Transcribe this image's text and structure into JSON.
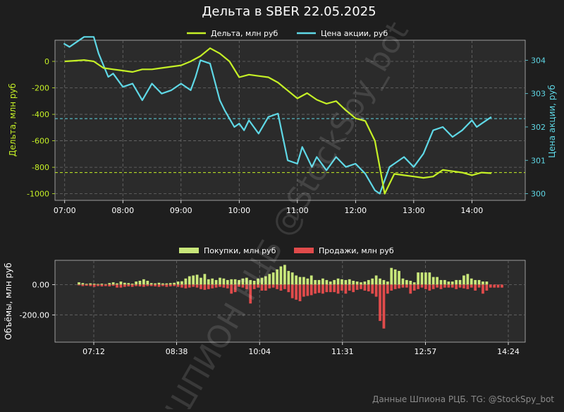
{
  "title": "Дельта в SBER 22.05.2025",
  "footer": "Данные Шпиона РЦБ. TG: @StockSpy_bot",
  "watermark": "ШПИОН РЦБ @StockSpy_bot",
  "colors": {
    "background": "#1e1e1e",
    "plot_bg": "#2b2b2b",
    "delta": "#c5f026",
    "price": "#5fd8e6",
    "buys": "#c8e67a",
    "sells": "#e04b4b",
    "grid": "#6b6b6b",
    "text": "#ffffff"
  },
  "chart_data": [
    {
      "type": "line",
      "legend": [
        "Дельта, млн руб",
        "Цена акции, руб"
      ],
      "legend_position": "top-center",
      "grid": true,
      "xlim": [
        "06:50",
        "14:55"
      ],
      "x_ticks": [
        "07:00",
        "08:00",
        "09:00",
        "10:00",
        "11:00",
        "12:00",
        "13:00",
        "14:00"
      ],
      "ylabel_left": "Дельта, млн руб",
      "ylim_left": [
        -1050,
        160
      ],
      "y_ticks_left": [
        0,
        -200,
        -400,
        -600,
        -800,
        -1000
      ],
      "ylabel_right": "Цена акции, руб",
      "ylim_right": [
        299.8,
        304.6
      ],
      "y_ticks_right": [
        300,
        301,
        302,
        303,
        304
      ],
      "reference_lines": [
        {
          "series": "Цена акции, руб",
          "value": 302.25,
          "style": "dashed"
        },
        {
          "series": "Дельта, млн руб",
          "value": -840,
          "style": "dashed"
        }
      ],
      "series": [
        {
          "name": "Дельта, млн руб",
          "axis": "left",
          "x": [
            "07:00",
            "07:10",
            "07:20",
            "07:30",
            "07:40",
            "07:50",
            "08:00",
            "08:10",
            "08:20",
            "08:30",
            "08:40",
            "08:50",
            "09:00",
            "09:10",
            "09:20",
            "09:30",
            "09:40",
            "09:50",
            "10:00",
            "10:10",
            "10:20",
            "10:30",
            "10:40",
            "10:50",
            "11:00",
            "11:10",
            "11:20",
            "11:30",
            "11:40",
            "11:50",
            "12:00",
            "12:10",
            "12:20",
            "12:30",
            "12:40",
            "12:50",
            "13:00",
            "13:10",
            "13:20",
            "13:30",
            "13:40",
            "13:50",
            "14:00",
            "14:10",
            "14:20"
          ],
          "values": [
            0,
            5,
            10,
            0,
            -50,
            -60,
            -70,
            -80,
            -60,
            -60,
            -50,
            -40,
            -30,
            0,
            40,
            100,
            60,
            0,
            -120,
            -100,
            -110,
            -120,
            -160,
            -220,
            -280,
            -240,
            -290,
            -320,
            -300,
            -370,
            -430,
            -450,
            -600,
            -1000,
            -850,
            -860,
            -870,
            -880,
            -870,
            -820,
            -830,
            -840,
            -860,
            -840,
            -845
          ]
        },
        {
          "name": "Цена акции, руб",
          "axis": "right",
          "x": [
            "06:59",
            "07:05",
            "07:10",
            "07:20",
            "07:30",
            "07:35",
            "07:45",
            "07:50",
            "08:00",
            "08:10",
            "08:20",
            "08:30",
            "08:40",
            "08:50",
            "09:00",
            "09:10",
            "09:15",
            "09:20",
            "09:30",
            "09:40",
            "09:45",
            "09:55",
            "10:00",
            "10:05",
            "10:10",
            "10:20",
            "10:30",
            "10:40",
            "10:50",
            "11:00",
            "11:05",
            "11:10",
            "11:15",
            "11:20",
            "11:30",
            "11:40",
            "11:50",
            "12:00",
            "12:10",
            "12:20",
            "12:25",
            "12:30",
            "12:35",
            "12:40",
            "12:50",
            "13:00",
            "13:10",
            "13:20",
            "13:30",
            "13:40",
            "13:50",
            "14:00",
            "14:05",
            "14:10",
            "14:20"
          ],
          "values": [
            304.5,
            304.4,
            304.5,
            304.7,
            304.7,
            304.2,
            303.5,
            303.6,
            303.2,
            303.3,
            302.8,
            303.3,
            303.0,
            303.1,
            303.3,
            303.1,
            303.5,
            304.0,
            303.9,
            302.8,
            302.5,
            302.0,
            302.1,
            301.9,
            302.2,
            301.8,
            302.3,
            302.4,
            301.0,
            300.9,
            301.4,
            301.1,
            300.8,
            301.1,
            300.7,
            301.1,
            300.8,
            300.9,
            300.6,
            300.1,
            300.0,
            300.4,
            300.8,
            300.9,
            301.1,
            300.8,
            301.2,
            301.9,
            302.0,
            301.7,
            301.9,
            302.2,
            302.0,
            302.1,
            302.3
          ]
        }
      ]
    },
    {
      "type": "bar",
      "legend": [
        "Покупки, млн руб",
        "Продажи, млн руб"
      ],
      "legend_position": "top-center",
      "grid": true,
      "ylabel": "Объёмы, млн руб",
      "ylim": [
        -380,
        160
      ],
      "y_ticks": [
        0,
        -200
      ],
      "y_tick_labels": [
        "0.00",
        "-200.00"
      ],
      "x_ticks": [
        "07:12",
        "08:38",
        "10:04",
        "11:31",
        "12:57",
        "14:24"
      ],
      "series": [
        {
          "name": "Покупки, млн руб",
          "values": [
            15,
            10,
            5,
            8,
            6,
            4,
            6,
            3,
            10,
            15,
            8,
            20,
            12,
            10,
            6,
            20,
            25,
            35,
            25,
            10,
            8,
            12,
            8,
            8,
            10,
            12,
            20,
            22,
            40,
            55,
            60,
            65,
            45,
            70,
            35,
            40,
            30,
            45,
            40,
            30,
            35,
            35,
            30,
            40,
            45,
            30,
            25,
            40,
            45,
            55,
            70,
            80,
            100,
            120,
            130,
            90,
            80,
            60,
            50,
            50,
            40,
            60,
            30,
            30,
            40,
            30,
            20,
            30,
            40,
            35,
            30,
            35,
            25,
            20,
            15,
            20,
            30,
            40,
            60,
            40,
            30,
            20,
            110,
            100,
            90,
            40,
            30,
            25,
            15,
            80,
            80,
            80,
            80,
            50,
            50,
            30,
            30,
            20,
            20,
            30,
            30,
            60,
            70,
            40,
            30,
            30,
            20,
            20
          ],
          "sells": [
            5,
            10,
            8,
            10,
            15,
            10,
            12,
            10,
            12,
            8,
            20,
            20,
            15,
            12,
            15,
            10,
            12,
            15,
            10,
            10,
            12,
            15,
            10,
            15,
            12,
            10,
            15,
            20,
            25,
            20,
            15,
            20,
            30,
            35,
            30,
            25,
            20,
            15,
            20,
            25,
            60,
            50,
            15,
            20,
            30,
            125,
            30,
            20,
            40,
            40,
            25,
            20,
            30,
            40,
            30,
            50,
            90,
            100,
            110,
            80,
            75,
            70,
            60,
            55,
            60,
            50,
            50,
            50,
            60,
            40,
            60,
            40,
            50,
            35,
            30,
            40,
            45,
            60,
            80,
            240,
            290,
            60,
            40,
            30,
            25,
            20,
            20,
            60,
            40,
            30,
            20,
            30,
            40,
            30,
            20,
            30,
            20,
            20,
            20,
            30,
            20,
            25,
            30,
            20,
            40,
            20,
            60,
            40,
            20,
            20,
            20,
            20
          ]
        }
      ]
    }
  ]
}
